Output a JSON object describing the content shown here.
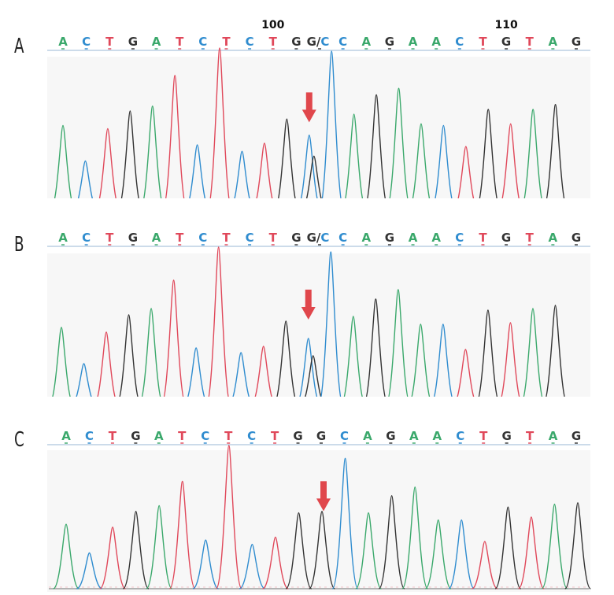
{
  "chart_data": [
    {
      "type": "line",
      "panel_label": "A",
      "bases": [
        "A",
        "C",
        "T",
        "G",
        "A",
        "T",
        "C",
        "T",
        "C",
        "T",
        "G",
        "G/C",
        "C",
        "A",
        "G",
        "A",
        "A",
        "C",
        "T",
        "G",
        "T",
        "A",
        "G"
      ],
      "position_labels": [
        {
          "index": 9,
          "text": "100"
        },
        {
          "index": 19,
          "text": "110"
        }
      ],
      "peaks": [
        {
          "base": "A",
          "height": 0.52
        },
        {
          "base": "C",
          "height": 0.3
        },
        {
          "base": "T",
          "height": 0.5
        },
        {
          "base": "G",
          "height": 0.61
        },
        {
          "base": "A",
          "height": 0.64
        },
        {
          "base": "T",
          "height": 0.83
        },
        {
          "base": "C",
          "height": 0.4
        },
        {
          "base": "T",
          "height": 1.0
        },
        {
          "base": "C",
          "height": 0.36
        },
        {
          "base": "T",
          "height": 0.41
        },
        {
          "base": "G",
          "height": 0.56
        },
        {
          "base": "C",
          "height": 0.46
        },
        {
          "base": "G",
          "height": 0.33
        },
        {
          "base": "C",
          "height": 0.98
        },
        {
          "base": "A",
          "height": 0.59
        },
        {
          "base": "G",
          "height": 0.71
        },
        {
          "base": "A",
          "height": 0.75
        },
        {
          "base": "A",
          "height": 0.53
        },
        {
          "base": "C",
          "height": 0.52
        },
        {
          "base": "T",
          "height": 0.39
        },
        {
          "base": "G",
          "height": 0.62
        },
        {
          "base": "T",
          "height": 0.53
        },
        {
          "base": "A",
          "height": 0.62
        },
        {
          "base": "G",
          "height": 0.65
        }
      ],
      "arrow_index": 11
    },
    {
      "type": "line",
      "panel_label": "B",
      "bases": [
        "A",
        "C",
        "T",
        "G",
        "A",
        "T",
        "C",
        "T",
        "C",
        "T",
        "G",
        "G/C",
        "C",
        "A",
        "G",
        "A",
        "A",
        "C",
        "T",
        "G",
        "T",
        "A",
        "G"
      ],
      "position_labels": [],
      "peaks": [
        {
          "base": "A",
          "height": 0.49
        },
        {
          "base": "C",
          "height": 0.26
        },
        {
          "base": "T",
          "height": 0.46
        },
        {
          "base": "G",
          "height": 0.57
        },
        {
          "base": "A",
          "height": 0.61
        },
        {
          "base": "T",
          "height": 0.79
        },
        {
          "base": "C",
          "height": 0.36
        },
        {
          "base": "T",
          "height": 1.0
        },
        {
          "base": "C",
          "height": 0.33
        },
        {
          "base": "T",
          "height": 0.37
        },
        {
          "base": "G",
          "height": 0.53
        },
        {
          "base": "C",
          "height": 0.42
        },
        {
          "base": "G",
          "height": 0.31
        },
        {
          "base": "C",
          "height": 0.97
        },
        {
          "base": "A",
          "height": 0.56
        },
        {
          "base": "G",
          "height": 0.67
        },
        {
          "base": "A",
          "height": 0.73
        },
        {
          "base": "A",
          "height": 0.51
        },
        {
          "base": "C",
          "height": 0.51
        },
        {
          "base": "T",
          "height": 0.35
        },
        {
          "base": "G",
          "height": 0.6
        },
        {
          "base": "T",
          "height": 0.52
        },
        {
          "base": "A",
          "height": 0.61
        },
        {
          "base": "G",
          "height": 0.63
        }
      ],
      "arrow_index": 11
    },
    {
      "type": "line",
      "panel_label": "C",
      "bases": [
        "A",
        "C",
        "T",
        "G",
        "A",
        "T",
        "C",
        "T",
        "C",
        "T",
        "G",
        "G",
        "C",
        "A",
        "G",
        "A",
        "A",
        "C",
        "T",
        "G",
        "T",
        "A",
        "G"
      ],
      "position_labels": [],
      "peaks": [
        {
          "base": "A",
          "height": 0.45
        },
        {
          "base": "C",
          "height": 0.25
        },
        {
          "base": "T",
          "height": 0.43
        },
        {
          "base": "G",
          "height": 0.54
        },
        {
          "base": "A",
          "height": 0.58
        },
        {
          "base": "T",
          "height": 0.75
        },
        {
          "base": "C",
          "height": 0.34
        },
        {
          "base": "T",
          "height": 1.0
        },
        {
          "base": "C",
          "height": 0.31
        },
        {
          "base": "T",
          "height": 0.36
        },
        {
          "base": "G",
          "height": 0.53
        },
        {
          "base": "G",
          "height": 0.54
        },
        {
          "base": "C",
          "height": 0.91
        },
        {
          "base": "A",
          "height": 0.53
        },
        {
          "base": "G",
          "height": 0.65
        },
        {
          "base": "A",
          "height": 0.71
        },
        {
          "base": "A",
          "height": 0.48
        },
        {
          "base": "C",
          "height": 0.48
        },
        {
          "base": "T",
          "height": 0.33
        },
        {
          "base": "G",
          "height": 0.57
        },
        {
          "base": "T",
          "height": 0.5
        },
        {
          "base": "A",
          "height": 0.59
        },
        {
          "base": "G",
          "height": 0.6
        }
      ],
      "arrow_index": 11
    }
  ],
  "colors": {
    "A": "#3aa86b",
    "C": "#2f8ccf",
    "T": "#e0485a",
    "G": "#333333",
    "arrow": "#e0474c"
  }
}
